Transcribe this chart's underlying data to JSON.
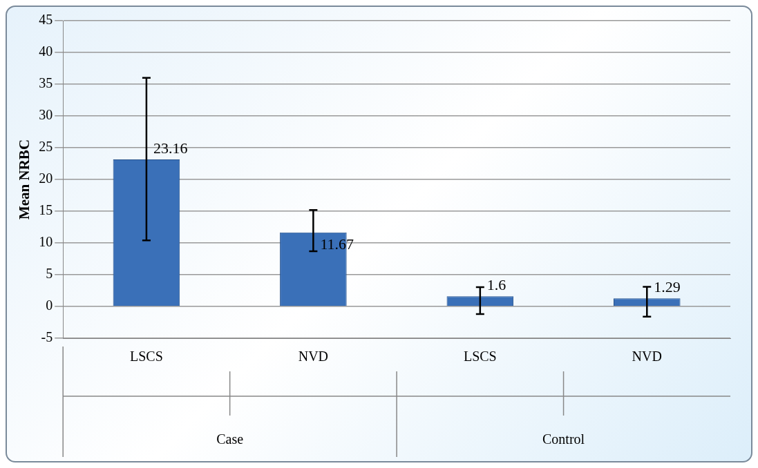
{
  "chart_data": {
    "type": "bar",
    "ylabel": "Mean NRBC",
    "categories": [
      "LSCS",
      "NVD",
      "LSCS",
      "NVD"
    ],
    "values": [
      23.16,
      11.67,
      1.6,
      1.29
    ],
    "errors": [
      [
        10.4,
        36
      ],
      [
        8.7,
        15.2
      ],
      [
        -1.2,
        3.05
      ],
      [
        -1.6,
        3.1
      ]
    ],
    "color": "#3a70b8",
    "data_labels": true,
    "ylim": [
      -5,
      45
    ],
    "yticks": [
      -5,
      0,
      5,
      10,
      15,
      20,
      25,
      30,
      35,
      40,
      45
    ],
    "grid": "y",
    "legend": false,
    "annotations": [
      "Case",
      "Control"
    ]
  }
}
